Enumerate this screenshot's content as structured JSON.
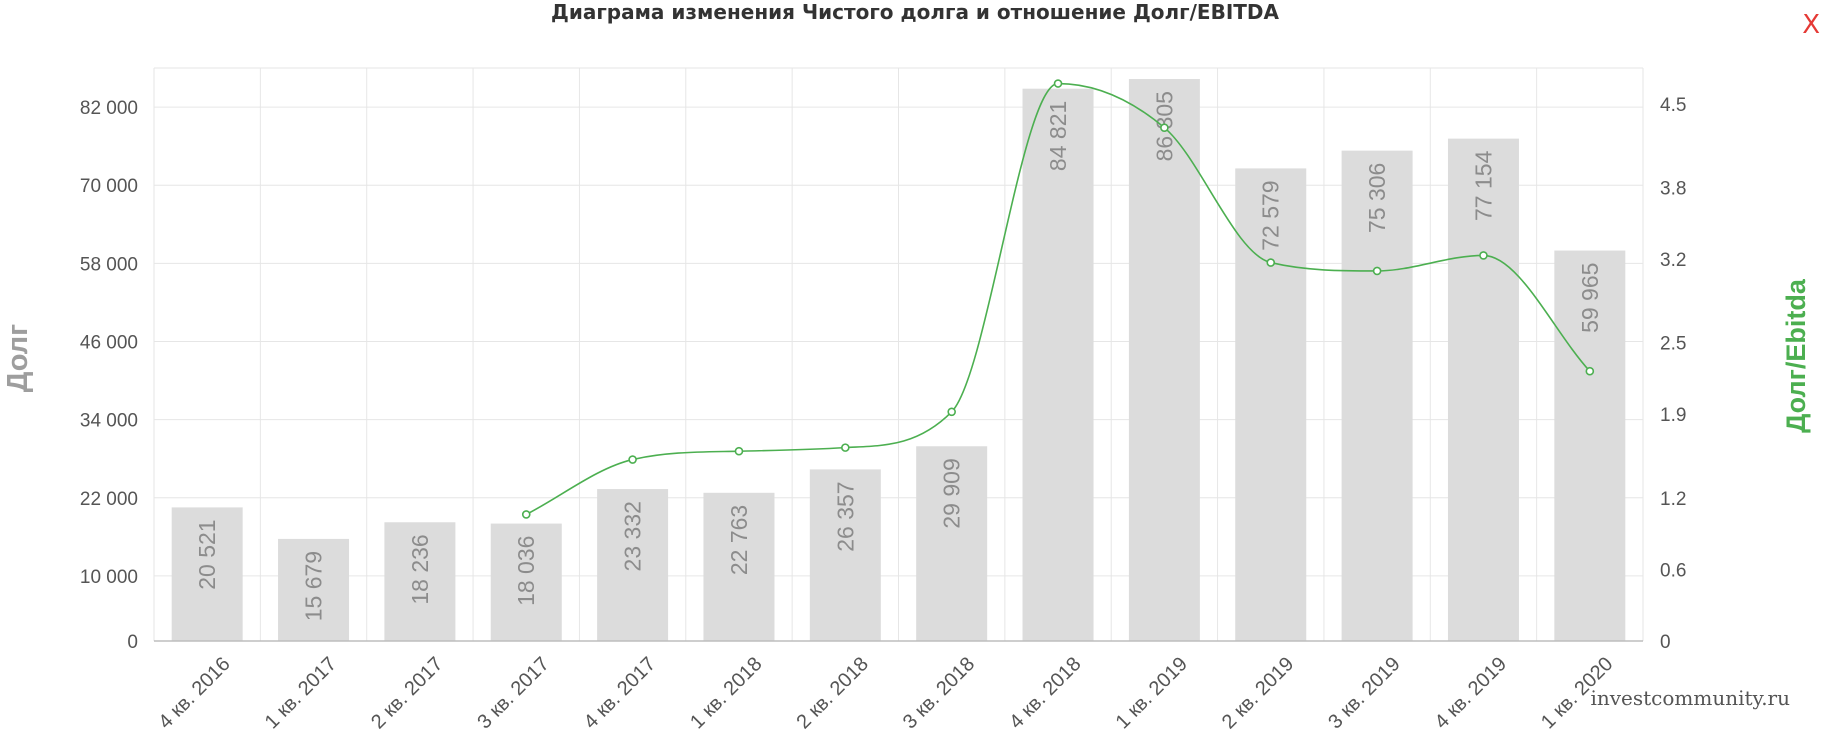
{
  "close_label": "X",
  "watermark": "investcommunity.ru",
  "colors": {
    "bar": "#dcdcdc",
    "line": "#4caf50",
    "grid": "#e6e6e6",
    "axis_text": "#555555",
    "left_title": "#9e9e9e",
    "right_title": "#4caf50",
    "bar_label": "#8c8c8c"
  },
  "chart_data": {
    "type": "bar",
    "title": "Диаграма изменения Чистого долга и отношение Долг/EBITDA",
    "categories": [
      "4 кв. 2016",
      "1 кв. 2017",
      "2 кв. 2017",
      "3 кв. 2017",
      "4 кв. 2017",
      "1 кв. 2018",
      "2 кв. 2018",
      "3 кв. 2018",
      "4 кв. 2018",
      "1 кв. 2019",
      "2 кв. 2019",
      "3 кв. 2019",
      "4 кв. 2019",
      "1 кв. 2020"
    ],
    "series": [
      {
        "type": "bar",
        "axis": "left",
        "values": [
          20521,
          15679,
          18236,
          18036,
          23332,
          22763,
          26357,
          29909,
          84821,
          86305,
          72579,
          75306,
          77154,
          59965
        ],
        "labels": [
          "20 521",
          "15 679",
          "18 236",
          "18 036",
          "23 332",
          "22 763",
          "26 357",
          "29 909",
          "84 821",
          "86 305",
          "72 579",
          "75 306",
          "77 154",
          "59 965"
        ]
      },
      {
        "type": "line",
        "axis": "right",
        "smooth": true,
        "values": [
          null,
          null,
          null,
          1.06,
          1.52,
          1.59,
          1.62,
          1.92,
          4.67,
          4.3,
          3.17,
          3.1,
          3.23,
          2.26
        ]
      }
    ],
    "ylabel_left": "Долг",
    "ylabel_right": "Долг/Ebitda",
    "ylim_left": [
      0,
      88000
    ],
    "ylim_right": [
      0,
      4.8
    ],
    "yticks_left": [
      0,
      10000,
      22000,
      34000,
      46000,
      58000,
      70000,
      82000
    ],
    "yticks_left_labels": [
      "0",
      "10 000",
      "22 000",
      "34 000",
      "46 000",
      "58 000",
      "70 000",
      "82 000"
    ],
    "yticks_right": [
      0,
      0.6,
      1.2,
      1.9,
      2.5,
      3.2,
      3.8,
      4.5
    ],
    "yticks_right_labels": [
      "0",
      "0.6",
      "1.2",
      "1.9",
      "2.5",
      "3.2",
      "3.8",
      "4.5"
    ],
    "grid": true
  }
}
